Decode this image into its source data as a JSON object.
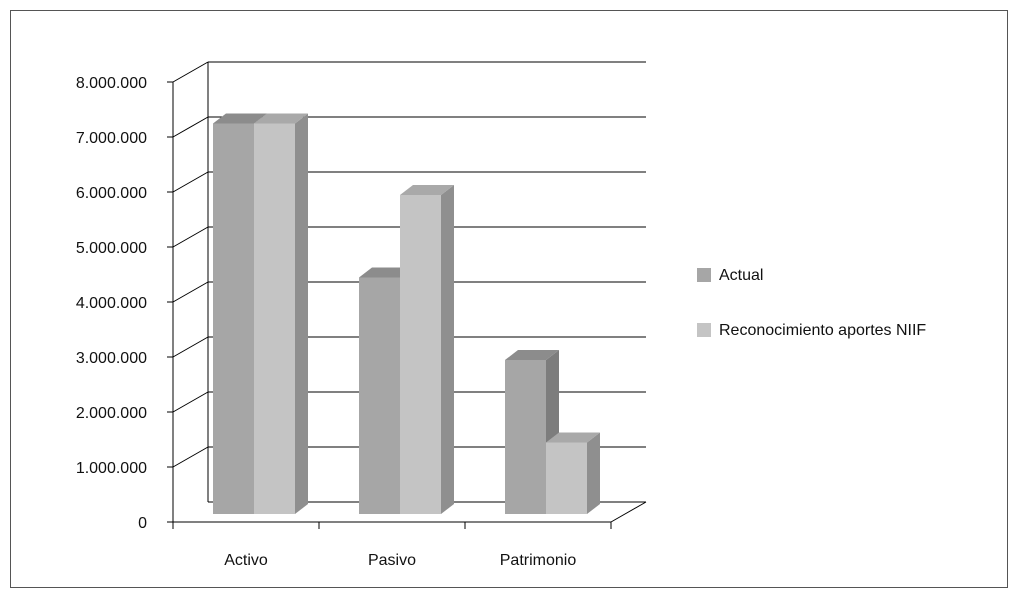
{
  "chart_data": {
    "type": "bar",
    "categories": [
      "Activo",
      "Pasivo",
      "Patrimonio"
    ],
    "series": [
      {
        "name": "Actual",
        "values": [
          7100000,
          4300000,
          2800000
        ],
        "color": "#a6a6a6"
      },
      {
        "name": "Reconocimiento aportes NIIF",
        "values": [
          7100000,
          5800000,
          1300000
        ],
        "color": "#c4c4c4"
      }
    ],
    "y_ticks": [
      "0",
      "1.000.000",
      "2.000.000",
      "3.000.000",
      "4.000.000",
      "5.000.000",
      "6.000.000",
      "7.000.000",
      "8.000.000"
    ],
    "ylim": [
      0,
      8000000
    ],
    "grid": true,
    "three_d": true,
    "legend_position": "right"
  }
}
